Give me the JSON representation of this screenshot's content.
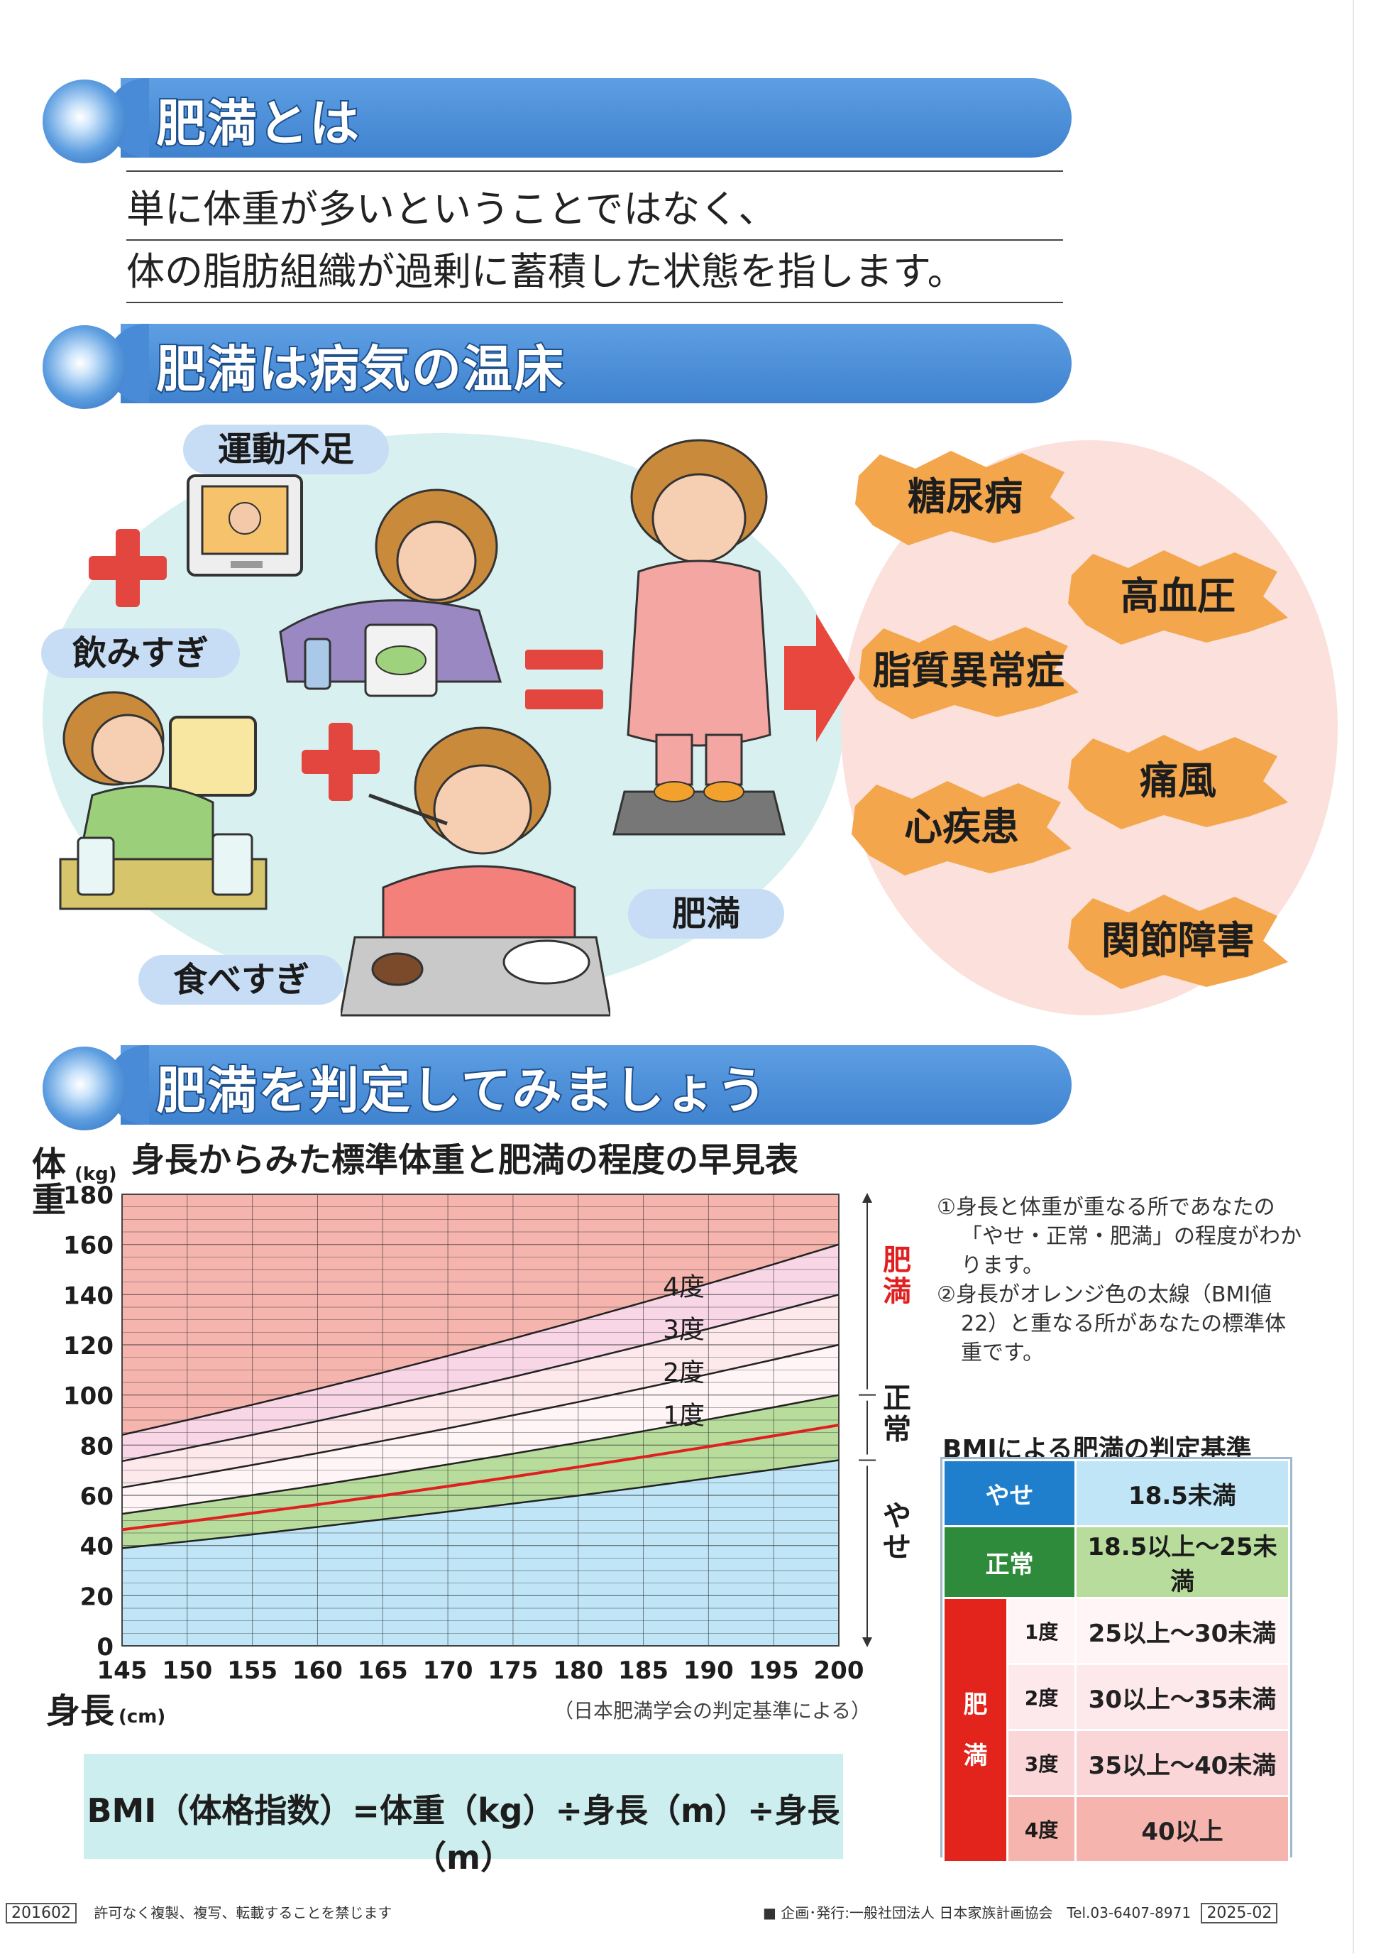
{
  "sections": {
    "s1_title": "肥満とは",
    "s2_title": "肥満は病気の温床",
    "s3_title": "肥満を判定してみましょう"
  },
  "intro": {
    "line1": "単に体重が多いということではなく、",
    "line2": "体の脂肪組織が過剰に蓄積した状態を指します。"
  },
  "causes": {
    "exercise": "運動不足",
    "drinking": "飲みすぎ",
    "eating": "食べすぎ",
    "result": "肥満"
  },
  "diseases": [
    "糖尿病",
    "高血圧",
    "脂質異常症",
    "痛風",
    "心疾患",
    "関節障害"
  ],
  "colors": {
    "header_blue": "#4a8bd8",
    "plus_red": "#e2463f",
    "obese_zone": "#f5b4ad",
    "normal_zone": "#b7dc9b",
    "thin_zone": "#bfe5f6",
    "bmi22_line": "#e02020"
  },
  "chart_data": {
    "type": "line",
    "title": "身長からみた標準体重と肥満の程度の早見表",
    "ylabel": "体重",
    "yunit": "(kg)",
    "xlabel": "身長",
    "xunit": "(cm)",
    "xlim": [
      145,
      200
    ],
    "ylim": [
      0,
      180
    ],
    "x_ticks": [
      "145",
      "150",
      "155",
      "160",
      "165",
      "170",
      "175",
      "180",
      "185",
      "190",
      "195",
      "200"
    ],
    "y_ticks": [
      "0",
      "20",
      "40",
      "60",
      "80",
      "100",
      "120",
      "140",
      "160",
      "180"
    ],
    "x": [
      145,
      150,
      155,
      160,
      165,
      170,
      175,
      180,
      185,
      190,
      195,
      200
    ],
    "series": [
      {
        "name": "BMI 18.5",
        "bmi": 18.5,
        "values": [
          38.9,
          41.6,
          44.4,
          47.4,
          50.4,
          53.5,
          56.7,
          59.9,
          63.3,
          66.8,
          70.3,
          74.0
        ]
      },
      {
        "name": "BMI 22",
        "bmi": 22,
        "values": [
          46.3,
          49.5,
          52.9,
          56.3,
          59.9,
          63.6,
          67.4,
          71.3,
          75.3,
          79.4,
          83.7,
          88.0
        ]
      },
      {
        "name": "1度",
        "bmi": 25,
        "values": [
          52.6,
          56.3,
          60.1,
          64.0,
          68.1,
          72.3,
          76.6,
          81.0,
          85.6,
          90.3,
          95.1,
          100.0
        ]
      },
      {
        "name": "2度",
        "bmi": 30,
        "values": [
          63.1,
          67.5,
          72.1,
          76.8,
          81.7,
          86.7,
          91.9,
          97.2,
          102.7,
          108.3,
          114.1,
          120.0
        ]
      },
      {
        "name": "3度",
        "bmi": 35,
        "values": [
          73.6,
          78.8,
          84.1,
          89.6,
          95.3,
          101.2,
          107.2,
          113.4,
          119.8,
          126.4,
          133.1,
          140.0
        ]
      },
      {
        "name": "4度",
        "bmi": 40,
        "values": [
          84.1,
          90.0,
          96.1,
          102.4,
          108.9,
          115.6,
          122.5,
          129.6,
          136.9,
          144.4,
          152.1,
          160.0
        ]
      }
    ],
    "zone_labels": {
      "obese": "肥満",
      "normal": "正常",
      "thin": "やせ"
    },
    "source": "（日本肥満学会の判定基準による）"
  },
  "notes": {
    "n1": "①身長と体重が重なる所であなたの「やせ・正常・肥満」の程度がわかります。",
    "n2": "②身長がオレンジ色の太線（BMI値22）と重なる所があなたの標準体重です。"
  },
  "bmi_table": {
    "title": "BMIによる肥満の判定基準",
    "thin_label": "やせ",
    "thin_value": "18.5未満",
    "normal_label": "正常",
    "normal_value": "18.5以上〜25未満",
    "obese_label_1": "肥",
    "obese_label_2": "満",
    "rows": [
      {
        "degree": "1度",
        "value": "25以上〜30未満"
      },
      {
        "degree": "2度",
        "value": "30以上〜35未満"
      },
      {
        "degree": "3度",
        "value": "35以上〜40未満"
      },
      {
        "degree": "4度",
        "value": "40以上"
      }
    ]
  },
  "formula": "BMI（体格指数）=体重（kg）÷身長（m）÷身長（m）",
  "footer": {
    "code_left": "201602",
    "notice": "許可なく複製、複写、転載することを禁じます",
    "publisher": "■ 企画･発行:一般社団法人 日本家族計画協会　Tel.03-6407-8971",
    "code_right": "2025-02"
  }
}
